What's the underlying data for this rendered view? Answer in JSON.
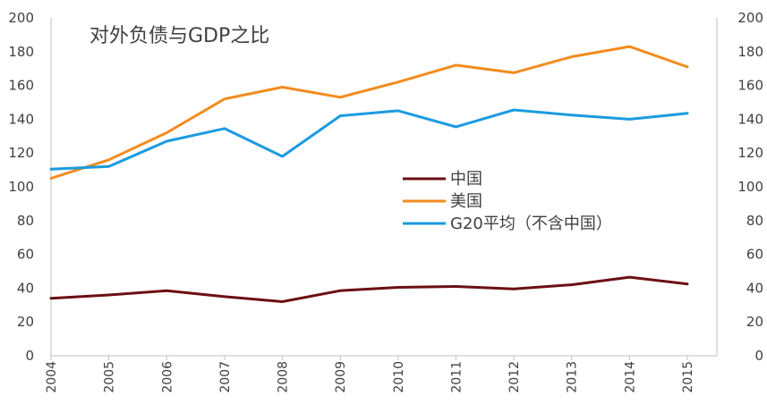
{
  "chart_data": {
    "type": "line",
    "title": "对外负债与GDP之比",
    "xlabel": "",
    "ylabel": "",
    "x": [
      "2004",
      "2005",
      "2006",
      "2007",
      "2008",
      "2009",
      "2010",
      "2011",
      "2012",
      "2013",
      "2014",
      "2015"
    ],
    "ylim": [
      0,
      200
    ],
    "yticks": [
      0,
      20,
      40,
      60,
      80,
      100,
      120,
      140,
      160,
      180,
      200
    ],
    "secondary_axis": true,
    "grid": false,
    "legend_position": "center-right",
    "series": [
      {
        "name": "中国",
        "color": "#6B0F12",
        "values": [
          34,
          36,
          38.5,
          35,
          32,
          38.5,
          40.5,
          41,
          39.5,
          42,
          46.5,
          42.5
        ]
      },
      {
        "name": "美国",
        "color": "#F28C1E",
        "values": [
          105,
          116,
          132,
          152,
          159,
          153,
          162,
          172,
          167.5,
          177,
          183,
          171
        ]
      },
      {
        "name": "G20平均（不含中国）",
        "color": "#1B9BE0",
        "values": [
          110.5,
          112,
          127,
          134.5,
          118,
          142,
          145,
          135.5,
          145.5,
          142.5,
          140,
          143.5
        ]
      }
    ]
  }
}
